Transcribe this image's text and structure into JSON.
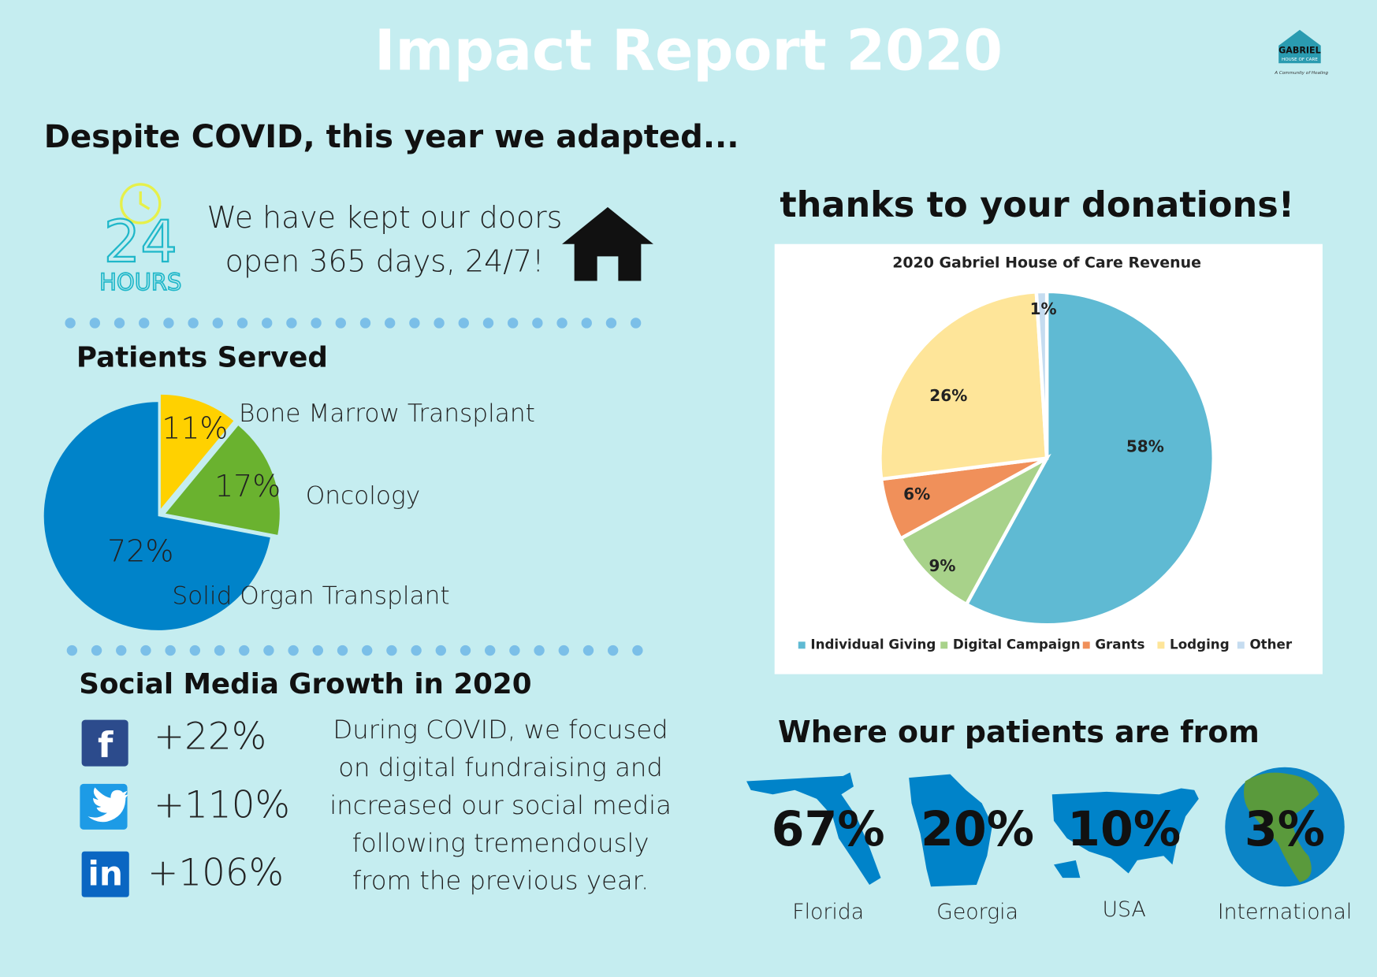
{
  "header": {
    "title": "Impact Report 2020",
    "logo": "GABRIEL",
    "logo_sub": "HOUSE OF CARE",
    "logo_tagline": "A Community of Healing"
  },
  "intro": {
    "heading": "Despite COVID, this year we adapted...",
    "icon_number": "24",
    "icon_label": "HOURS",
    "text_lines": [
      "We have kept our doors",
      "open 365 days, 24/7!"
    ]
  },
  "donations_heading": "thanks to your donations!",
  "chart_data": [
    {
      "type": "pie",
      "title": "Patients Served",
      "categories": [
        "Bone Marrow Transplant",
        "Oncology",
        "Solid Organ Transplant"
      ],
      "values": [
        11,
        17,
        72
      ],
      "value_labels": [
        "11%",
        "17%",
        "72%"
      ],
      "colors": [
        "#ffd100",
        "#6ab22f",
        "#0083c9"
      ]
    },
    {
      "type": "pie",
      "title": "2020 Gabriel House of Care Revenue",
      "categories": [
        "Individual Giving",
        "Digital Campaign",
        "Grants",
        "Lodging",
        "Other"
      ],
      "values": [
        58,
        9,
        6,
        26,
        1
      ],
      "value_labels": [
        "58%",
        "9%",
        "6%",
        "26%",
        "1%"
      ],
      "colors": [
        "#5fbad3",
        "#a8d28a",
        "#f0905a",
        "#fee599",
        "#c5dcf0"
      ],
      "legend": "bottom"
    }
  ],
  "social": {
    "heading": "Social Media Growth in 2020",
    "items": [
      {
        "icon": "f",
        "growth": "+22%"
      },
      {
        "icon": "",
        "growth": "+110%"
      },
      {
        "icon": "in",
        "growth": "+106%"
      }
    ],
    "text_lines": [
      "During COVID, we focused",
      "on digital fundraising and",
      "increased our social media",
      "following tremendously",
      "from the previous year."
    ]
  },
  "origins": {
    "heading": "Where our patients are from",
    "items": [
      {
        "percent": "67%",
        "label": "Florida"
      },
      {
        "percent": "20%",
        "label": "Georgia"
      },
      {
        "percent": "10%",
        "label": "USA"
      },
      {
        "percent": "3%",
        "label": "International"
      }
    ]
  }
}
